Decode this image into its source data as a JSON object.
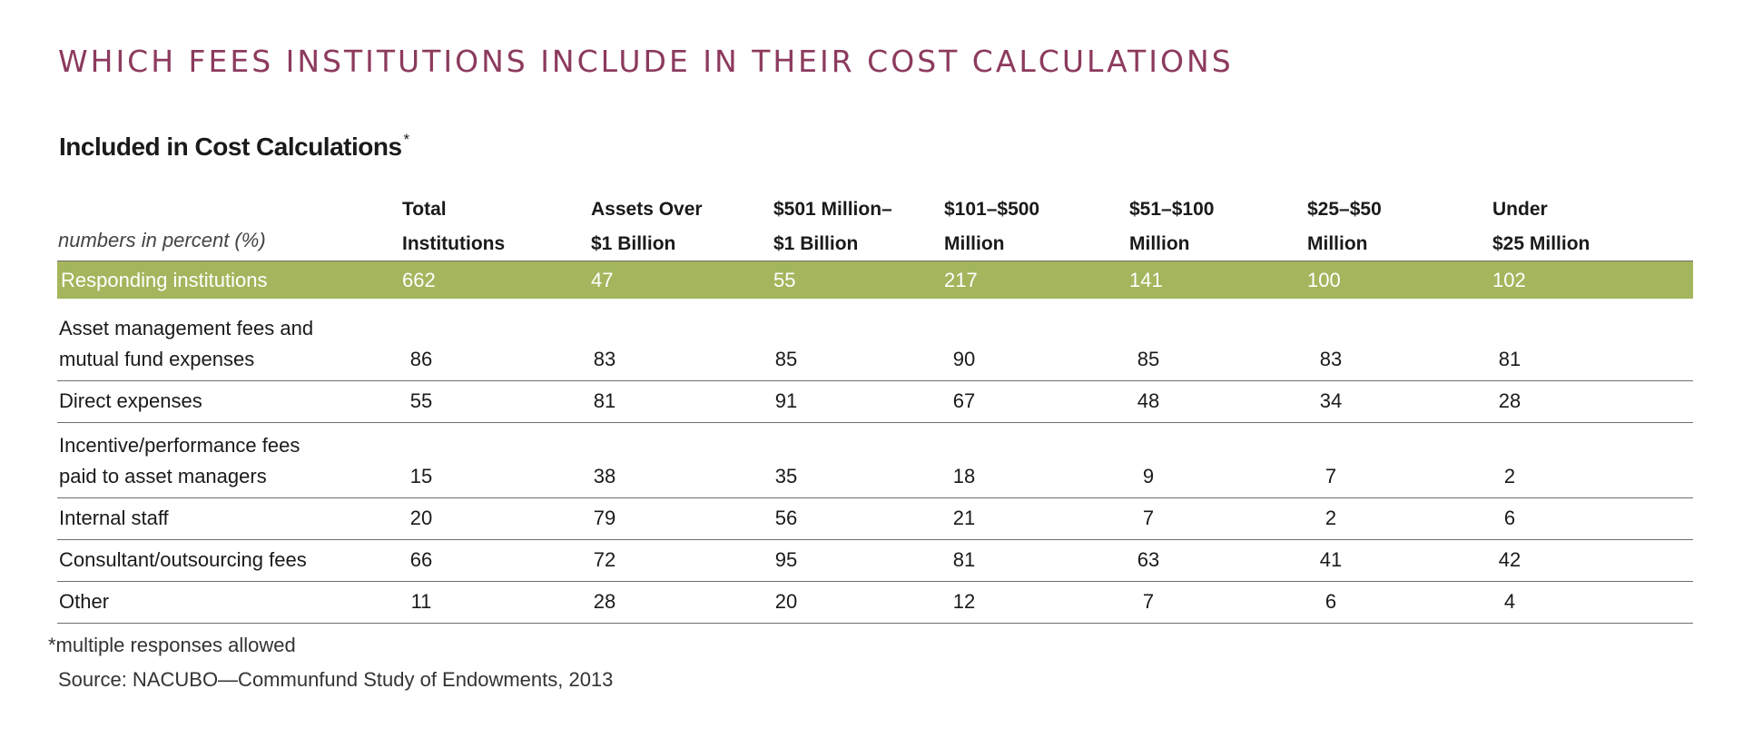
{
  "header": {
    "title": "WHICH FEES INSTITUTIONS INCLUDE IN THEIR COST CALCULATIONS",
    "subtitle": "Included in Cost Calculations",
    "subtitle_mark": "*",
    "unit_note": "numbers in percent (%)"
  },
  "colors": {
    "title": "#8c3a5e",
    "band": "#a3b65d",
    "band_text": "#ffffff",
    "rule": "#6e6e6e"
  },
  "chart_data": {
    "type": "table",
    "title": "Included in Cost Calculations*",
    "columns": [
      {
        "line1": "Total",
        "line2": "Institutions"
      },
      {
        "line1": "Assets Over",
        "line2": "$1 Billion"
      },
      {
        "line1": "$501 Million–",
        "line2": "$1 Billion"
      },
      {
        "line1": "$101–$500",
        "line2": "Million"
      },
      {
        "line1": "$51–$100",
        "line2": "Million"
      },
      {
        "line1": "$25–$50",
        "line2": "Million"
      },
      {
        "line1": "Under",
        "line2": "$25 Million"
      }
    ],
    "responding": {
      "label": "Responding institutions",
      "values": [
        662,
        47,
        55,
        217,
        141,
        100,
        102
      ]
    },
    "rows": [
      {
        "label": [
          "Asset management fees and",
          "mutual fund expenses"
        ],
        "values": [
          86,
          83,
          85,
          90,
          85,
          83,
          81
        ]
      },
      {
        "label": [
          "Direct expenses"
        ],
        "values": [
          55,
          81,
          91,
          67,
          48,
          34,
          28
        ]
      },
      {
        "label": [
          "Incentive/performance fees",
          "paid to asset managers"
        ],
        "values": [
          15,
          38,
          35,
          18,
          9,
          7,
          2
        ]
      },
      {
        "label": [
          "Internal staff"
        ],
        "values": [
          20,
          79,
          56,
          21,
          7,
          2,
          6
        ]
      },
      {
        "label": [
          "Consultant/outsourcing fees"
        ],
        "values": [
          66,
          72,
          95,
          81,
          63,
          41,
          42
        ]
      },
      {
        "label": [
          "Other"
        ],
        "values": [
          11,
          28,
          20,
          12,
          7,
          6,
          4
        ]
      }
    ]
  },
  "footer": {
    "footnote": "*multiple responses allowed",
    "source": "Source: NACUBO—Communfund Study of Endowments, 2013"
  }
}
